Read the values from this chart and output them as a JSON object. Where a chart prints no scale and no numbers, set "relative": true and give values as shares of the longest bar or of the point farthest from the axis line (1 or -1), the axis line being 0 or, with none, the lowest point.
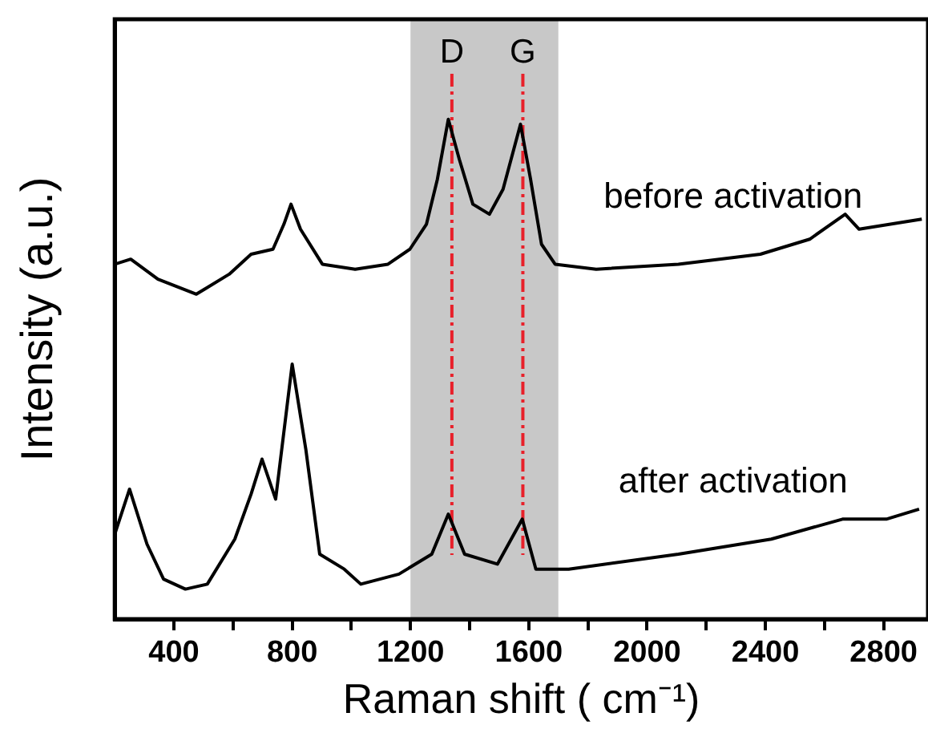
{
  "chart_data": {
    "type": "line",
    "xlabel": "Raman shift ( cm⁻¹)",
    "ylabel": "Intensity (a.u.)",
    "relative": true,
    "grid": false,
    "legend": false,
    "marker": "none",
    "line_style": "solid",
    "xlim": [
      200,
      2950
    ],
    "xticks": [
      400,
      {
        "value": 600,
        "label": null
      },
      800,
      {
        "value": 1000,
        "label": null
      },
      1200,
      {
        "value": 1400,
        "label": null
      },
      1600,
      {
        "value": 1800,
        "label": null
      },
      2000,
      {
        "value": 2200,
        "label": null
      },
      2400,
      {
        "value": 2600,
        "label": null
      },
      2800
    ],
    "series": [
      {
        "name": "before activation",
        "color": "#000000",
        "x": [
          200,
          254,
          346,
          476,
          587,
          661,
          735,
          772,
          796,
          828,
          902,
          1013,
          1124,
          1198,
          1254,
          1291,
          1328,
          1365,
          1411,
          1467,
          1513,
          1572,
          1606,
          1643,
          1689,
          1828,
          2106,
          2383,
          2550,
          2670,
          2717,
          2929
        ],
        "values": [
          0.71,
          0.72,
          0.68,
          0.65,
          0.69,
          0.73,
          0.74,
          0.79,
          0.83,
          0.78,
          0.71,
          0.7,
          0.71,
          0.74,
          0.79,
          0.88,
          1,
          0.92,
          0.83,
          0.81,
          0.86,
          0.99,
          0.88,
          0.75,
          0.71,
          0.7,
          0.71,
          0.73,
          0.76,
          0.81,
          0.78,
          0.8
        ]
      },
      {
        "name": "after activation",
        "color": "#000000",
        "x": [
          200,
          250,
          309,
          365,
          439,
          513,
          606,
          661,
          698,
          744,
          800,
          846,
          893,
          976,
          1032,
          1161,
          1272,
          1328,
          1383,
          1494,
          1578,
          1624,
          1735,
          2106,
          2420,
          2661,
          2809,
          2920
        ],
        "values": [
          0.17,
          0.26,
          0.15,
          0.08,
          0.06,
          0.07,
          0.16,
          0.25,
          0.32,
          0.24,
          0.51,
          0.34,
          0.13,
          0.1,
          0.07,
          0.09,
          0.13,
          0.21,
          0.13,
          0.11,
          0.2,
          0.1,
          0.1,
          0.13,
          0.16,
          0.2,
          0.2,
          0.22
        ]
      }
    ],
    "ref_lines": [
      {
        "axis": "x",
        "value": 1340,
        "label": "D",
        "color": "#e8202a",
        "line_style": "dashed"
      },
      {
        "axis": "x",
        "value": 1580,
        "label": "G",
        "color": "#e8202a",
        "line_style": "dashed"
      }
    ],
    "bands": [
      {
        "axis": "x",
        "from": 1200,
        "to": 1700,
        "color": "#c8c8c8"
      }
    ]
  }
}
